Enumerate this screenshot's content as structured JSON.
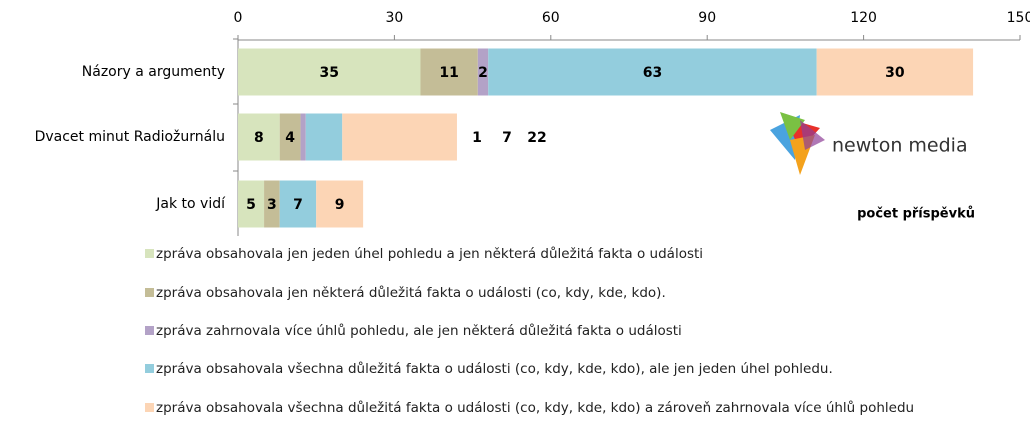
{
  "chart_data": {
    "type": "stacked-bar-horizontal",
    "categories": [
      "Názory a argumenty",
      "Dvacet minut Radiožurnálu",
      "Jak to vidí"
    ],
    "series": [
      {
        "name": "zpráva obsahovala jen jeden úhel pohledu a jen některá důležitá fakta o události",
        "color": "#d7e4bd",
        "values": [
          35,
          8,
          5
        ]
      },
      {
        "name": "zpráva obsahovala jen některá důležitá fakta o události (co, kdy, kde, kdo).",
        "color": "#c4bd97",
        "values": [
          11,
          4,
          3
        ]
      },
      {
        "name": "zpráva zahrnovala více úhlů pohledu, ale jen některá důležitá fakta o události",
        "color": "#b3a2c7",
        "values": [
          2,
          1,
          null
        ]
      },
      {
        "name": "zpráva obsahovala všechna důležitá fakta o události (co, kdy, kde, kdo), ale jen jeden úhel pohledu.",
        "color": "#93cddd",
        "values": [
          63,
          7,
          7
        ]
      },
      {
        "name": "zpráva obsahovala všechna důležitá fakta o události (co, kdy, kde, kdo) a zároveň zahrnovala více úhlů pohledu",
        "color": "#fcd5b5",
        "values": [
          30,
          22,
          9
        ]
      }
    ],
    "xlim": [
      0,
      150
    ],
    "xticks": [
      0,
      30,
      60,
      90,
      120,
      150
    ],
    "x_label": "počet příspěvků",
    "logo_text": "newton media"
  }
}
